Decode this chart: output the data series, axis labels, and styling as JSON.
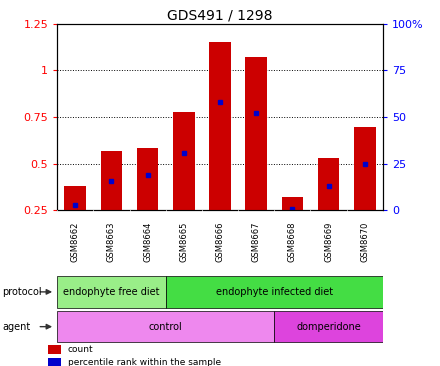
{
  "title": "GDS491 / 1298",
  "samples": [
    "GSM8662",
    "GSM8663",
    "GSM8664",
    "GSM8665",
    "GSM8666",
    "GSM8667",
    "GSM8668",
    "GSM8669",
    "GSM8670"
  ],
  "bar_heights": [
    0.38,
    0.57,
    0.585,
    0.78,
    1.15,
    1.07,
    0.32,
    0.53,
    0.695
  ],
  "blue_marker_pos": [
    0.28,
    0.41,
    0.44,
    0.56,
    0.83,
    0.77,
    0.26,
    0.38,
    0.5
  ],
  "bar_color": "#cc0000",
  "blue_color": "#0000cc",
  "ylim_left": [
    0.25,
    1.25
  ],
  "ylim_right": [
    0,
    100
  ],
  "yticks_left": [
    0.25,
    0.5,
    0.75,
    1.0,
    1.25
  ],
  "yticks_right": [
    0,
    25,
    50,
    75,
    100
  ],
  "ytick_labels_left": [
    "0.25",
    "0.5",
    "0.75",
    "1",
    "1.25"
  ],
  "ytick_labels_right": [
    "0",
    "25",
    "50",
    "75",
    "100%"
  ],
  "protocol_groups": [
    {
      "label": "endophyte free diet",
      "start": 0,
      "end": 3,
      "color": "#99ee88"
    },
    {
      "label": "endophyte infected diet",
      "start": 3,
      "end": 9,
      "color": "#44dd44"
    }
  ],
  "agent_groups": [
    {
      "label": "control",
      "start": 0,
      "end": 6,
      "color": "#ee88ee"
    },
    {
      "label": "domperidone",
      "start": 6,
      "end": 9,
      "color": "#dd44dd"
    }
  ],
  "protocol_label": "protocol",
  "agent_label": "agent",
  "legend_count": "count",
  "legend_percentile": "percentile rank within the sample",
  "bar_width": 0.6,
  "background_color": "#ffffff",
  "tick_area_color": "#cccccc",
  "title_fontsize": 10,
  "axis_fontsize": 8,
  "sample_fontsize": 6,
  "label_fontsize": 7,
  "n_samples": 9
}
